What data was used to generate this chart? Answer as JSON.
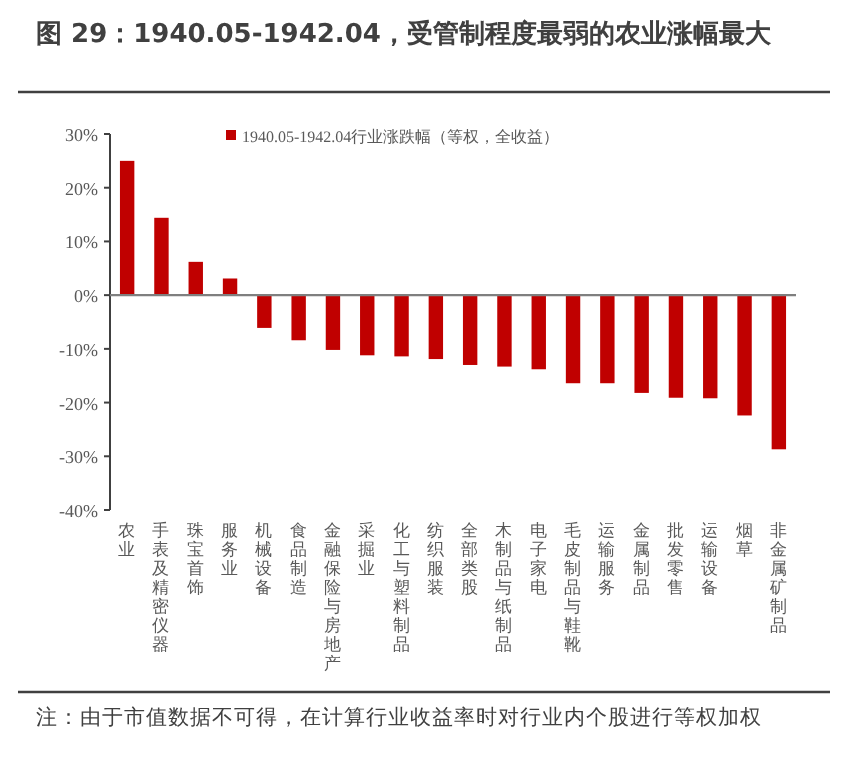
{
  "chart_data": {
    "type": "bar",
    "title": "图 29：1940.05-1942.04，受管制程度最弱的农业涨幅最大",
    "categories": [
      "农业",
      "手表及精密仪器",
      "珠宝首饰",
      "服务业",
      "机械设备",
      "食品制造",
      "金融保险与房地产",
      "采掘业",
      "化工与塑料制品",
      "纺织服装",
      "全部类股",
      "木制品与纸制品",
      "电子家电",
      "毛皮制品与鞋靴",
      "运输服务",
      "金属制品",
      "批发零售",
      "运输设备",
      "烟草",
      "非金属矿制品"
    ],
    "series": [
      {
        "name": "1940.05-1942.04行业涨跌幅（等权，全收益）",
        "color": "#c00000",
        "values": [
          25,
          14.4,
          6.2,
          3.1,
          -6.1,
          -8.4,
          -10.2,
          -11.2,
          -11.4,
          -11.9,
          -13.0,
          -13.3,
          -13.8,
          -16.4,
          -16.4,
          -18.2,
          -19.1,
          -19.2,
          -22.4,
          -28.7
        ]
      }
    ],
    "ylim": [
      -40,
      30
    ],
    "yticks": [
      {
        "value": 30,
        "label": "30%"
      },
      {
        "value": 20,
        "label": "20%"
      },
      {
        "value": 10,
        "label": "10%"
      },
      {
        "value": 0,
        "label": "0%"
      },
      {
        "value": -10,
        "label": "-10%"
      },
      {
        "value": -20,
        "label": "-20%"
      },
      {
        "value": -30,
        "label": "-30%"
      },
      {
        "value": -40,
        "label": "-40%"
      }
    ],
    "legend": "top",
    "annotations": [
      "注：由于市值数据不可得，在计算行业收益率时对行业内个股进行等权加权"
    ]
  }
}
